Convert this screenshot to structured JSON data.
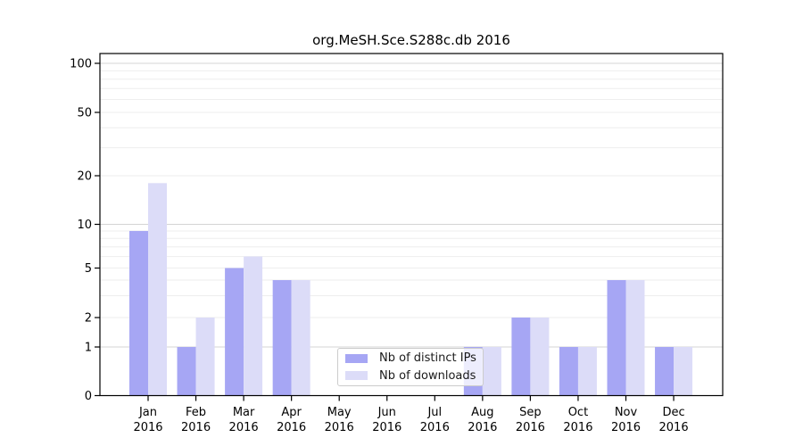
{
  "title": "org.MeSH.Sce.S288c.db 2016",
  "colors": {
    "distinct_ips": "#a6a6f4",
    "downloads": "#dcdcf8",
    "major_grid": "#d4d4d4",
    "minor_grid": "#eeeeee",
    "axis": "#000000",
    "legend_border": "#cccccc",
    "text": "#000000"
  },
  "legend": {
    "items": [
      {
        "label": "Nb of distinct IPs",
        "color_key": "distinct_ips"
      },
      {
        "label": "Nb of downloads",
        "color_key": "downloads"
      }
    ]
  },
  "chart_data": {
    "type": "bar",
    "title": "org.MeSH.Sce.S288c.db 2016",
    "categories": [
      "Jan 2016",
      "Feb 2016",
      "Mar 2016",
      "Apr 2016",
      "May 2016",
      "Jun 2016",
      "Jul 2016",
      "Aug 2016",
      "Sep 2016",
      "Oct 2016",
      "Nov 2016",
      "Dec 2016"
    ],
    "series": [
      {
        "name": "Nb of distinct IPs",
        "color_key": "distinct_ips",
        "values": [
          9,
          1,
          5,
          4,
          0,
          0,
          0,
          1,
          2,
          1,
          4,
          1
        ]
      },
      {
        "name": "Nb of downloads",
        "color_key": "downloads",
        "values": [
          18,
          2,
          6,
          4,
          0,
          0,
          0,
          1,
          2,
          1,
          4,
          1
        ]
      }
    ],
    "xlabel": "",
    "ylabel": "",
    "y_ticks": [
      0,
      1,
      2,
      5,
      10,
      20,
      50,
      100
    ],
    "y_minor_gridlines": [
      2,
      3,
      4,
      5,
      6,
      7,
      8,
      9,
      20,
      30,
      40,
      50,
      60,
      70,
      80,
      90
    ],
    "y_major_gridlines": [
      1,
      10,
      100
    ],
    "y_scale": "log-like",
    "ylim": [
      0,
      115
    ],
    "grid": true,
    "legend_position": "bottom-center"
  }
}
